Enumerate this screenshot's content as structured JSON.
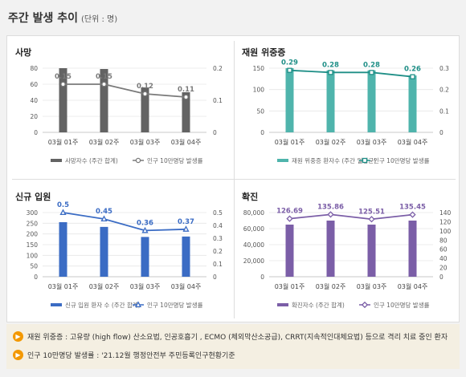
{
  "page": {
    "title": "주간 발생 추이",
    "unit": "(단위 : 명)"
  },
  "chart_data": [
    {
      "type": "bar",
      "title": "사망",
      "categories": [
        "03월 01주",
        "03월 02주",
        "03월 03주",
        "03월 04주"
      ],
      "bar_series": {
        "name": "사망자수 (주간 합계)",
        "values": [
          80,
          79,
          56,
          50
        ],
        "color": "#636363"
      },
      "line_series": {
        "name": "인구 10만명당 발생률",
        "values": [
          0.15,
          0.15,
          0.12,
          0.11
        ],
        "color": "#7a7a7a",
        "marker": "circle"
      },
      "data_labels": [
        "0.15",
        "0.15",
        "0.12",
        "0.11"
      ],
      "y_left": {
        "min": 0,
        "max": 80,
        "ticks": [
          "0",
          "20",
          "40",
          "60",
          "80"
        ]
      },
      "y_right": {
        "min": 0,
        "max": 0.2,
        "ticks": [
          "0",
          "0.1",
          "0.2"
        ]
      },
      "legend_position": "bottom"
    },
    {
      "type": "bar",
      "title": "재원 위중증",
      "categories": [
        "03월 01주",
        "03월 02주",
        "03월 03주",
        "03월 04주"
      ],
      "bar_series": {
        "name": "재원 위중증 환자수 (주간 일평균)",
        "values": [
          150,
          145,
          145,
          133
        ],
        "color": "#4fb4ac"
      },
      "line_series": {
        "name": "인구 10만명당 발생률",
        "values": [
          0.29,
          0.28,
          0.28,
          0.26
        ],
        "color": "#1f8f87",
        "marker": "square"
      },
      "data_labels": [
        "0.29",
        "0.28",
        "0.28",
        "0.26"
      ],
      "y_left": {
        "min": 0,
        "max": 150,
        "ticks": [
          "0",
          "50",
          "100",
          "150"
        ]
      },
      "y_right": {
        "min": 0,
        "max": 0.3,
        "ticks": [
          "0",
          "0.1",
          "0.2",
          "0.3"
        ]
      },
      "legend_position": "bottom"
    },
    {
      "type": "bar",
      "title": "신규 입원",
      "categories": [
        "03월 01주",
        "03월 02주",
        "03월 03주",
        "03월 04주"
      ],
      "bar_series": {
        "name": "신규 입원 환자 수 (주간 합계)",
        "values": [
          255,
          233,
          186,
          188
        ],
        "color": "#3b6cc4"
      },
      "line_series": {
        "name": "인구 10만명당 발생률",
        "values": [
          0.5,
          0.45,
          0.36,
          0.37
        ],
        "color": "#3b6cc4",
        "marker": "triangle"
      },
      "data_labels": [
        "0.5",
        "0.45",
        "0.36",
        "0.37"
      ],
      "y_left": {
        "min": 0,
        "max": 300,
        "ticks": [
          "0",
          "50",
          "100",
          "150",
          "200",
          "250",
          "300"
        ]
      },
      "y_right": {
        "min": 0,
        "max": 0.5,
        "ticks": [
          "0",
          "0.1",
          "0.2",
          "0.3",
          "0.4",
          "0.5"
        ]
      },
      "legend_position": "bottom"
    },
    {
      "type": "bar",
      "title": "확진",
      "categories": [
        "03월 01주",
        "03월 02주",
        "03월 03주",
        "03월 04주"
      ],
      "bar_series": {
        "name": "확진자수 (주간 합계)",
        "values": [
          65000,
          70000,
          65000,
          70000
        ],
        "color": "#7b5ea7"
      },
      "line_series": {
        "name": "인구 10만명당 발생률",
        "values": [
          126.69,
          135.86,
          125.51,
          135.45
        ],
        "color": "#7b5ea7",
        "marker": "diamond"
      },
      "data_labels": [
        "126.69",
        "135.86",
        "125.51",
        "135.45"
      ],
      "y_left": {
        "min": 0,
        "max": 80000,
        "ticks": [
          "0",
          "20,000",
          "40,000",
          "60,000",
          "80,000"
        ]
      },
      "y_right": {
        "min": 0,
        "max": 140,
        "ticks": [
          "0",
          "20",
          "40",
          "60",
          "80",
          "100",
          "120",
          "140"
        ]
      },
      "legend_position": "bottom"
    }
  ],
  "footnotes": [
    {
      "icon": "speaker-icon",
      "text": "재원 위중증 : 고유량 (high flow) 산소요법, 인공호흡기 , ECMO (체외막산소공급), CRRT(지속적인대체요법) 등으로 격리 치료 중인 환자"
    },
    {
      "icon": "speaker-icon",
      "text": "인구 10만명당 발생률 : '21.12월 행정안전부 주민등록인구현황기준"
    }
  ]
}
